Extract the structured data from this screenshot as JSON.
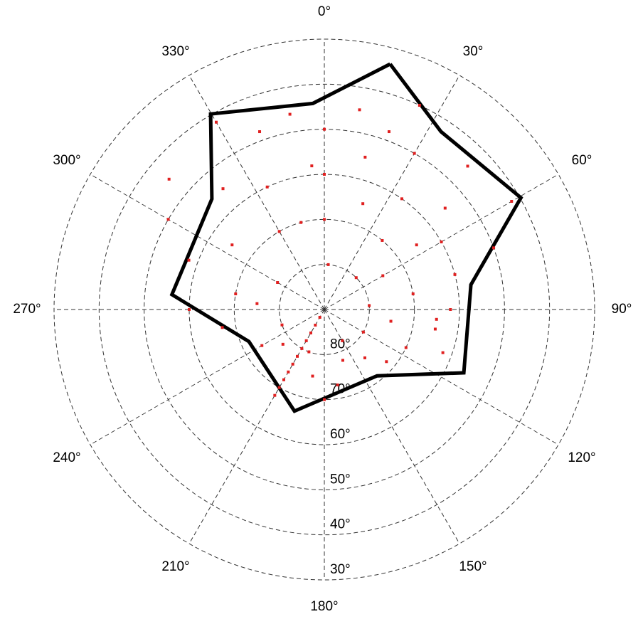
{
  "chart_data": {
    "type": "polar",
    "rlim": [
      30,
      90
    ],
    "rticks": [
      {
        "value": 30,
        "label": "30°"
      },
      {
        "value": 40,
        "label": "40°"
      },
      {
        "value": 50,
        "label": "50°"
      },
      {
        "value": 60,
        "label": "60°"
      },
      {
        "value": 70,
        "label": "70°"
      },
      {
        "value": 80,
        "label": "80°"
      }
    ],
    "thetaticks": [
      {
        "value": 0,
        "label": "0°"
      },
      {
        "value": 30,
        "label": "30°"
      },
      {
        "value": 60,
        "label": "60°"
      },
      {
        "value": 90,
        "label": "90°"
      },
      {
        "value": 120,
        "label": "120°"
      },
      {
        "value": 150,
        "label": "150°"
      },
      {
        "value": 180,
        "label": "180°"
      },
      {
        "value": 210,
        "label": "210°"
      },
      {
        "value": 240,
        "label": "240°"
      },
      {
        "value": 270,
        "label": "270°"
      },
      {
        "value": 300,
        "label": "300°"
      },
      {
        "value": 330,
        "label": "330°"
      }
    ],
    "grid": true,
    "series": [
      {
        "kind": "line",
        "color": "#000000",
        "azimuth": [
          15,
          33.3,
          60.4,
          80.4,
          114.4,
          141.5,
          196.4,
          247,
          275.6,
          314.5,
          329.8,
          356.8,
          15
        ],
        "elevation": [
          33.6,
          42.8,
          39.8,
          57,
          56,
          71.2,
          66.5,
          71.8,
          56,
          55,
          39.8,
          44.2,
          33.6
        ]
      },
      {
        "kind": "points",
        "color": "#e02020",
        "azimuth": [
          210,
          210,
          210,
          210,
          210,
          210,
          210,
          210,
          210,
          210,
          210,
          0,
          0,
          0,
          10,
          15,
          20,
          25,
          30,
          35,
          40,
          45,
          50,
          55,
          60,
          60,
          70,
          75,
          80,
          85,
          90,
          95,
          100,
          110,
          115,
          120,
          130,
          140,
          150,
          160,
          170,
          180,
          190,
          200,
          230,
          240,
          250,
          260,
          270,
          280,
          290,
          300,
          305,
          310,
          320,
          330,
          335,
          340,
          345,
          350,
          355,
          5,
          45,
          300,
          20,
          330,
          60,
          100,
          275
        ],
        "elevation": [
          88,
          86,
          84,
          82,
          80,
          78,
          76,
          74,
          72,
          70,
          68,
          50,
          60,
          70,
          45,
          55,
          65,
          40,
          50,
          60,
          70,
          45,
          55,
          65,
          42,
          75,
          50,
          60,
          70,
          80,
          62,
          65,
          75,
          62,
          70,
          80,
          72,
          76,
          82,
          78,
          73,
          70,
          75,
          80,
          78,
          74,
          80,
          67,
          60,
          70,
          58,
          50,
          65,
          45,
          55,
          42,
          60,
          48,
          70,
          46,
          58,
          80,
          80,
          78,
          48,
          70,
          60,
          65,
          75
        ]
      }
    ]
  }
}
